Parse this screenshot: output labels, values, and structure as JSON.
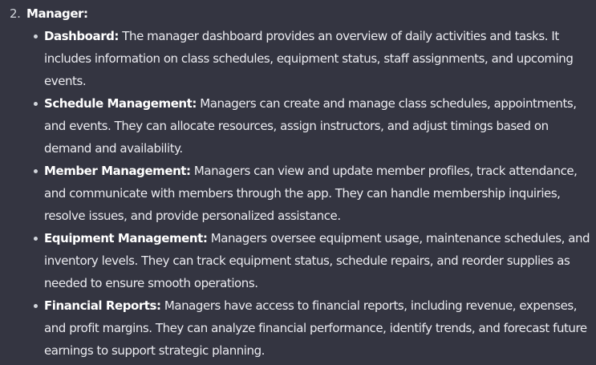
{
  "section": {
    "marker": "2.",
    "heading": "Manager:"
  },
  "bullets": [
    {
      "title": "Dashboard:",
      "text": " The manager dashboard provides an overview of daily activities and tasks. It includes information on class schedules, equipment status, staff assignments, and upcoming events."
    },
    {
      "title": "Schedule Management:",
      "text": " Managers can create and manage class schedules, appointments, and events. They can allocate resources, assign instructors, and adjust timings based on demand and availability."
    },
    {
      "title": "Member Management:",
      "text": " Managers can view and update member profiles, track attendance, and communicate with members through the app. They can handle membership inquiries, resolve issues, and provide personalized assistance."
    },
    {
      "title": "Equipment Management:",
      "text": " Managers oversee equipment usage, maintenance schedules, and inventory levels. They can track equipment status, schedule repairs, and reorder supplies as needed to ensure smooth operations."
    },
    {
      "title": "Financial Reports:",
      "text": " Managers have access to financial reports, including revenue, expenses, and profit margins. They can analyze financial performance, identify trends, and forecast future earnings to support strategic planning."
    }
  ]
}
